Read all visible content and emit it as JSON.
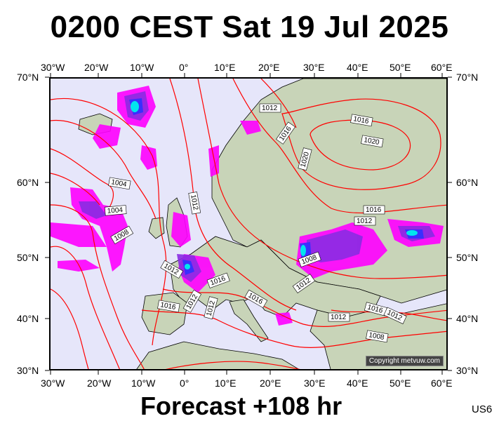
{
  "title": "0200 CEST Sat 19 Jul 2025",
  "footer": "Forecast +108 hr",
  "model_code": "US6",
  "copyright": "Copyright metvuw.com",
  "axes": {
    "top": [
      "30°W",
      "20°W",
      "10°W",
      "0°",
      "10°E",
      "20°E",
      "30°E",
      "40°E",
      "50°E",
      "60°E"
    ],
    "bottom": [
      "30°W",
      "20°W",
      "10°W",
      "0°",
      "10°E",
      "20°E",
      "30°E",
      "40°E",
      "50°E",
      "60°E"
    ],
    "left": [
      "70°N",
      "60°N",
      "50°N",
      "40°N",
      "30°N"
    ],
    "right": [
      "70°N",
      "60°N",
      "50°N",
      "40°N",
      "30°N"
    ]
  },
  "isobars": {
    "labels": [
      "1012",
      "1016",
      "1016",
      "1020",
      "1020",
      "1004",
      "1004",
      "1012",
      "1008",
      "1016",
      "1012",
      "1008",
      "1012",
      "1012",
      "1016",
      "1016",
      "1012",
      "1016",
      "1012",
      "1016",
      "1012",
      "1008",
      "1012"
    ]
  },
  "colors": {
    "background": "#e6e6fa",
    "isobar": "#ff0000",
    "coast": "#000000",
    "land": "#c8d4b8",
    "rain_light": "#ff00ff",
    "rain_medium": "#8a2be2",
    "rain_heavy": "#3030ff",
    "rain_extreme": "#00e5ee"
  }
}
